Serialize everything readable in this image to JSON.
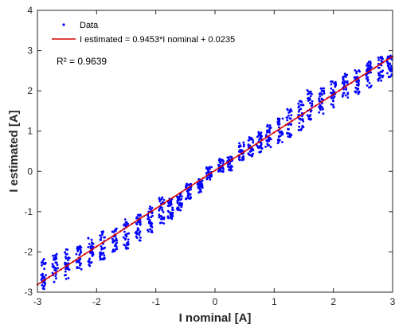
{
  "chart_data": {
    "type": "scatter",
    "title": "",
    "xlabel": "I nominal [A]",
    "ylabel": "I estimated [A]",
    "xlim": [
      -3,
      3
    ],
    "ylim": [
      -3,
      4
    ],
    "xticks": [
      -3,
      -2,
      -1,
      0,
      1,
      2,
      3
    ],
    "yticks": [
      -3,
      -2,
      -1,
      0,
      1,
      2,
      3,
      4
    ],
    "grid": false,
    "legend_position": "top-left",
    "annotation": "R² = 0.9639",
    "series": [
      {
        "name": "Data",
        "kind": "points",
        "color": "#0000ff",
        "x_levels": [
          -2.9,
          -2.7,
          -2.5,
          -2.3,
          -2.1,
          -1.9,
          -1.7,
          -1.5,
          -1.3,
          -1.1,
          -0.9,
          -0.75,
          -0.6,
          -0.45,
          -0.25,
          -0.1,
          0.1,
          0.25,
          0.45,
          0.6,
          0.75,
          0.9,
          1.1,
          1.25,
          1.45,
          1.6,
          1.8,
          2.0,
          2.2,
          2.4,
          2.6,
          2.8,
          2.95
        ],
        "y_center": [
          -2.55,
          -2.4,
          -2.3,
          -2.15,
          -2.0,
          -1.85,
          -1.7,
          -1.55,
          -1.4,
          -1.2,
          -0.95,
          -0.9,
          -0.75,
          -0.5,
          -0.35,
          -0.05,
          0.15,
          0.2,
          0.5,
          0.6,
          0.75,
          0.9,
          1.05,
          1.2,
          1.4,
          1.65,
          1.75,
          1.95,
          2.1,
          2.25,
          2.4,
          2.55,
          2.6
        ],
        "y_spread": [
          0.75,
          0.7,
          0.75,
          0.6,
          0.7,
          0.75,
          0.6,
          0.75,
          0.65,
          0.7,
          0.7,
          0.55,
          0.45,
          0.4,
          0.35,
          0.35,
          0.35,
          0.35,
          0.45,
          0.5,
          0.55,
          0.6,
          0.7,
          0.7,
          0.75,
          0.75,
          0.7,
          0.75,
          0.65,
          0.7,
          0.65,
          0.6,
          0.55
        ]
      },
      {
        "name": "I estimated = 0.9453*I nominal + 0.0235",
        "kind": "fit-line",
        "color": "#d40000",
        "slope": 0.9453,
        "intercept": 0.0235,
        "x_range": [
          -3,
          3
        ]
      }
    ]
  }
}
